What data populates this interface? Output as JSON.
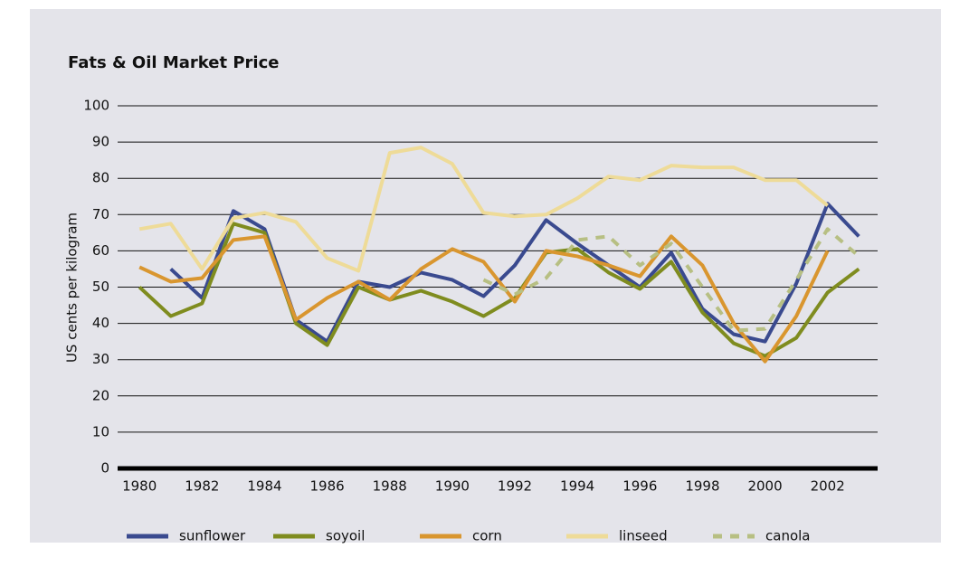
{
  "chart_data": {
    "type": "line",
    "title": "Fats & Oil Market Price",
    "y_label": "US cents per kilogram",
    "x": [
      1980,
      1981,
      1982,
      1983,
      1984,
      1985,
      1986,
      1987,
      1988,
      1989,
      1990,
      1991,
      1992,
      1993,
      1994,
      1995,
      1996,
      1997,
      1998,
      1999,
      2000,
      2001,
      2002,
      2003
    ],
    "series": [
      {
        "name": "sunflower",
        "color": "#3a4a8f",
        "dashed": false,
        "values": [
          null,
          55,
          47,
          71,
          66,
          41,
          35,
          51.5,
          50,
          54,
          52,
          47.5,
          56,
          68.5,
          62,
          56,
          50,
          59.5,
          44,
          37,
          35,
          51,
          73,
          64
        ]
      },
      {
        "name": "soyoil",
        "color": "#7f8c1f",
        "dashed": false,
        "values": [
          50,
          42,
          45.5,
          67.5,
          65,
          40,
          34,
          50,
          46.5,
          49,
          46,
          42,
          47,
          59.5,
          60.5,
          54,
          49.5,
          57,
          43,
          34.5,
          31,
          36,
          48.5,
          55
        ]
      },
      {
        "name": "corn",
        "color": "#d9962f",
        "dashed": false,
        "values": [
          55.5,
          51.5,
          52.5,
          63,
          64,
          41,
          47,
          51.5,
          46.5,
          55,
          60.5,
          57,
          46,
          60,
          58.5,
          56,
          53,
          64,
          56,
          40,
          29.5,
          42,
          60,
          null
        ]
      },
      {
        "name": "linseed",
        "color": "#eedb98",
        "dashed": false,
        "values": [
          66,
          67.5,
          55,
          69,
          70.5,
          68,
          58,
          54.5,
          87,
          88.5,
          84,
          70.5,
          69.5,
          70,
          74.5,
          80.5,
          79.5,
          83.5,
          83,
          83,
          79.5,
          79.5,
          72.5,
          null
        ]
      },
      {
        "name": "canola",
        "color": "#b7bf83",
        "dashed": true,
        "values": [
          null,
          null,
          null,
          null,
          null,
          null,
          null,
          null,
          null,
          null,
          null,
          52,
          48,
          52.5,
          63,
          64,
          56,
          62,
          50,
          38,
          38.5,
          52,
          66,
          58.5
        ]
      }
    ],
    "xlim": [
      1979.3,
      2003.6
    ],
    "xticks": [
      1980,
      1982,
      1984,
      1986,
      1988,
      1990,
      1992,
      1994,
      1996,
      1998,
      2000,
      2002
    ],
    "ylim": [
      0,
      100
    ],
    "yticks": [
      0,
      10,
      20,
      30,
      40,
      50,
      60,
      70,
      80,
      90,
      100
    ],
    "grid": true
  }
}
